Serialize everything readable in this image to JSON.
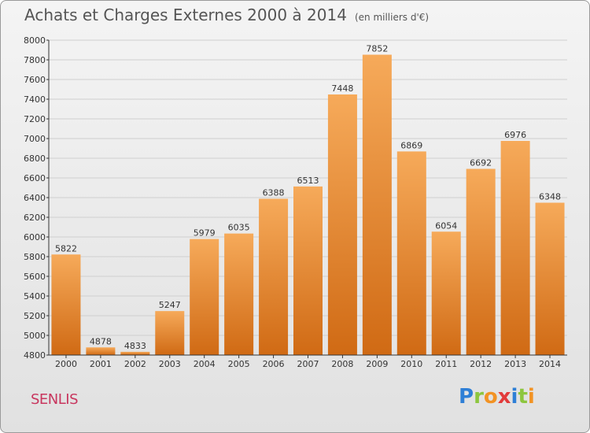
{
  "header": {
    "title": "Achats et Charges Externes 2000 à 2014",
    "unit": "(en milliers d'€)"
  },
  "footer": {
    "city": "SENLIS",
    "logo": [
      "P",
      "r",
      "o",
      "x",
      "i",
      "t",
      "i"
    ],
    "logo_colors": [
      "#2e7fd6",
      "#8dc63f",
      "#f29324",
      "#e23b3b",
      "#2e7fd6",
      "#8dc63f",
      "#f29324"
    ]
  },
  "colors": {
    "bar_top": "#f6aa5a",
    "bar_bottom": "#d06a14",
    "grid": "#cfcfcf",
    "axis": "#333333"
  },
  "chart_data": {
    "type": "bar",
    "title": "Achats et Charges Externes 2000 à 2014",
    "categories": [
      "2000",
      "2001",
      "2002",
      "2003",
      "2004",
      "2005",
      "2006",
      "2007",
      "2008",
      "2009",
      "2010",
      "2011",
      "2012",
      "2013",
      "2014"
    ],
    "values": [
      5822,
      4878,
      4833,
      5247,
      5979,
      6035,
      6388,
      6513,
      7448,
      7852,
      6869,
      6054,
      6692,
      6976,
      6348
    ],
    "ylim": [
      4800,
      8000
    ],
    "yticks": [
      4800,
      5000,
      5200,
      5400,
      5600,
      5800,
      6000,
      6200,
      6400,
      6600,
      6800,
      7000,
      7200,
      7400,
      7600,
      7800,
      8000
    ],
    "grid": true,
    "xlabel": "",
    "ylabel": ""
  }
}
